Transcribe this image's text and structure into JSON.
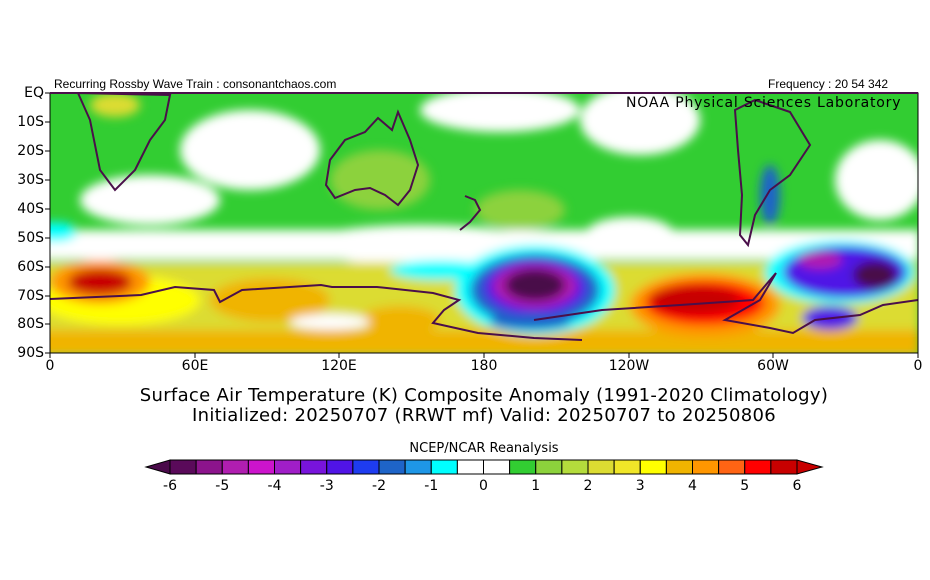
{
  "header": {
    "left_text": "Recurring Rossby Wave Train : consonantchaos.com",
    "right_text": "Frequency : 20 54 342",
    "lab_text": "NOAA Physical Sciences Laboratory"
  },
  "map": {
    "lat_labels": [
      "EQ",
      "10S",
      "20S",
      "30S",
      "40S",
      "50S",
      "60S",
      "70S",
      "80S",
      "90S"
    ],
    "lon_labels": [
      "0",
      "60E",
      "120E",
      "180",
      "120W",
      "60W",
      "0"
    ],
    "field": "Surface air temperature anomaly (K)",
    "coastline_color": "#4a0f4a"
  },
  "title": {
    "line1": "Surface Air Temperature (K) Composite Anomaly (1991-2020 Climatology)",
    "line2": "Initialized: 20250707 (RRWT mf) Valid: 20250707 to 20250806"
  },
  "colorbar": {
    "label": "NCEP/NCAR Reanalysis",
    "tick_labels": [
      "-6",
      "-5",
      "-4",
      "-3",
      "-2",
      "-1",
      "0",
      "1",
      "2",
      "3",
      "4",
      "5",
      "6"
    ],
    "low_extend_color": "#4a0a4a",
    "high_extend_color": "#c80000",
    "colors": [
      "#5a0a5a",
      "#8c148c",
      "#b01eb0",
      "#cc14cc",
      "#a01ec8",
      "#7814dc",
      "#5014e6",
      "#1e3cf0",
      "#1e64c8",
      "#1e96e6",
      "#00ffff",
      "#ffffff",
      "#ffffff",
      "#32cd32",
      "#8cd23c",
      "#b4dc3c",
      "#dcdc32",
      "#f0e628",
      "#ffff00",
      "#f0b400",
      "#ff9600",
      "#ff6414",
      "#ff0000",
      "#c80000"
    ]
  }
}
